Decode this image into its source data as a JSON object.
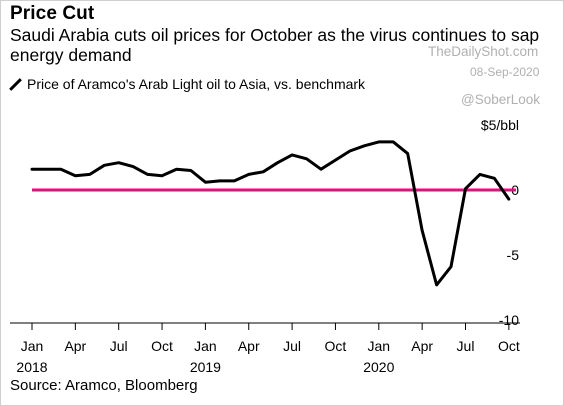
{
  "header": {
    "title": "Price Cut",
    "subtitle": "Saudi Arabia cuts oil prices for October as the virus continues to sap energy demand"
  },
  "legend": {
    "label": "Price of Aramco's Arab Light oil to Asia, vs. benchmark"
  },
  "watermark": {
    "site": "TheDailyShot.com",
    "date": "08-Sep-2020",
    "handle": "@SoberLook"
  },
  "footer": {
    "source": "Source: Aramco, Bloomberg"
  },
  "colors": {
    "line": "#000000",
    "zero_line": "#e0107d",
    "axis": "#000000"
  },
  "chart_data": {
    "type": "line",
    "title": "Price Cut",
    "ylabel": "$5/bbl",
    "ylim": [
      -10,
      5
    ],
    "y_ticks": [
      {
        "value": 5,
        "label": "$5/bbl"
      },
      {
        "value": 0,
        "label": "0"
      },
      {
        "value": -5,
        "label": "-5"
      },
      {
        "value": -10,
        "label": "-10"
      }
    ],
    "x_ticks": [
      {
        "month": "2018-01",
        "label": "Jan",
        "year": "2018"
      },
      {
        "month": "2018-04",
        "label": "Apr"
      },
      {
        "month": "2018-07",
        "label": "Jul"
      },
      {
        "month": "2018-10",
        "label": "Oct"
      },
      {
        "month": "2019-01",
        "label": "Jan",
        "year": "2019"
      },
      {
        "month": "2019-04",
        "label": "Apr"
      },
      {
        "month": "2019-07",
        "label": "Jul"
      },
      {
        "month": "2019-10",
        "label": "Oct"
      },
      {
        "month": "2020-01",
        "label": "Jan",
        "year": "2020"
      },
      {
        "month": "2020-04",
        "label": "Apr"
      },
      {
        "month": "2020-07",
        "label": "Jul"
      },
      {
        "month": "2020-10",
        "label": "Oct"
      }
    ],
    "reference_line": 0,
    "grid": false,
    "series": [
      {
        "x": [
          "2018-01",
          "2018-02",
          "2018-03",
          "2018-04",
          "2018-05",
          "2018-06",
          "2018-07",
          "2018-08",
          "2018-09",
          "2018-10",
          "2018-11",
          "2018-12",
          "2019-01",
          "2019-02",
          "2019-03",
          "2019-04",
          "2019-05",
          "2019-06",
          "2019-07",
          "2019-08",
          "2019-09",
          "2019-10",
          "2019-11",
          "2019-12",
          "2020-01",
          "2020-02",
          "2020-03",
          "2020-04",
          "2020-05",
          "2020-06",
          "2020-07",
          "2020-08",
          "2020-09",
          "2020-10"
        ],
        "values": [
          1.6,
          1.6,
          1.6,
          1.1,
          1.2,
          1.9,
          2.1,
          1.8,
          1.2,
          1.1,
          1.6,
          1.5,
          0.6,
          0.7,
          0.7,
          1.2,
          1.4,
          2.1,
          2.7,
          2.4,
          1.6,
          2.3,
          3.0,
          3.4,
          3.7,
          3.7,
          2.8,
          -3.1,
          -7.3,
          -5.9,
          0.1,
          1.2,
          0.9,
          -0.7
        ]
      }
    ]
  }
}
